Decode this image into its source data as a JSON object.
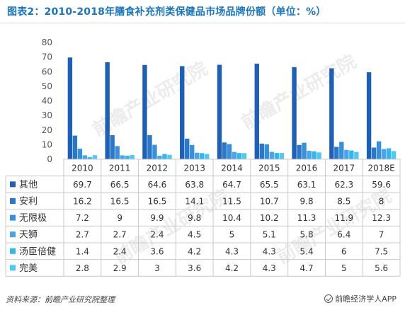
{
  "page": {
    "title": "图表2：2010-2018年膳食补充剂类保健品市场品牌份额（单位：%）",
    "source": "资料来源：前瞻产业研究院整理",
    "brand": "前瞻经济学人APP",
    "watermark": "前瞻产业研究院"
  },
  "chart_data": {
    "type": "bar",
    "title": "图表2：2010-2018年膳食补充剂类保健品市场品牌份额（单位：%）",
    "categories": [
      "2010",
      "2011",
      "2012",
      "2013",
      "2014",
      "2015",
      "2016",
      "2017",
      "2018E"
    ],
    "ylim": [
      0,
      80
    ],
    "yticks": [
      "0",
      "10",
      "20",
      "30",
      "40",
      "50",
      "60",
      "70",
      "80"
    ],
    "grid": false,
    "legend": "table-left",
    "series": [
      {
        "name": "其他",
        "color": "#1f5fb4",
        "values": [
          69.7,
          66.5,
          64.6,
          63.8,
          64.7,
          65.5,
          63.1,
          62.3,
          59.6
        ],
        "labels": [
          "69.7",
          "66.5",
          "64.6",
          "63.8",
          "64.7",
          "65.5",
          "63.1",
          "62.3",
          "59.6"
        ]
      },
      {
        "name": "安利",
        "color": "#2b78c8",
        "values": [
          16.2,
          16.5,
          16.5,
          14.1,
          11.5,
          10.7,
          9.8,
          8.5,
          8
        ],
        "labels": [
          "16.2",
          "16.5",
          "16.5",
          "14.1",
          "11.5",
          "10.7",
          "9.8",
          "8.5",
          "8"
        ]
      },
      {
        "name": "无限极",
        "color": "#3a8fd9",
        "values": [
          7.2,
          9,
          9.9,
          9.8,
          10.4,
          10.2,
          11.3,
          11.9,
          12.3
        ],
        "labels": [
          "7.2",
          "9",
          "9.9",
          "9.8",
          "10.4",
          "10.2",
          "11.3",
          "11.9",
          "12.3"
        ]
      },
      {
        "name": "天狮",
        "color": "#4ca4e8",
        "values": [
          2.7,
          2.7,
          2.4,
          4.5,
          5,
          5.1,
          5.8,
          6.4,
          7
        ],
        "labels": [
          "2.7",
          "2.7",
          "2.4",
          "4.5",
          "5",
          "5.1",
          "5.8",
          "6.4",
          "7"
        ]
      },
      {
        "name": "汤臣倍健",
        "color": "#36b5ea",
        "values": [
          1.4,
          2.4,
          3.6,
          4.2,
          4.3,
          4.3,
          5.4,
          6,
          7.5
        ],
        "labels": [
          "1.4",
          "2.4",
          "3.6",
          "4.2",
          "4.3",
          "4.3",
          "5.4",
          "6",
          "7.5"
        ]
      },
      {
        "name": "完美",
        "color": "#4fc8f2",
        "values": [
          2.8,
          2.9,
          3,
          3.6,
          4.2,
          4.3,
          4.7,
          5,
          5.6
        ],
        "labels": [
          "2.8",
          "2.9",
          "3",
          "3.6",
          "4.2",
          "4.3",
          "4.7",
          "5",
          "5.6"
        ]
      }
    ]
  }
}
